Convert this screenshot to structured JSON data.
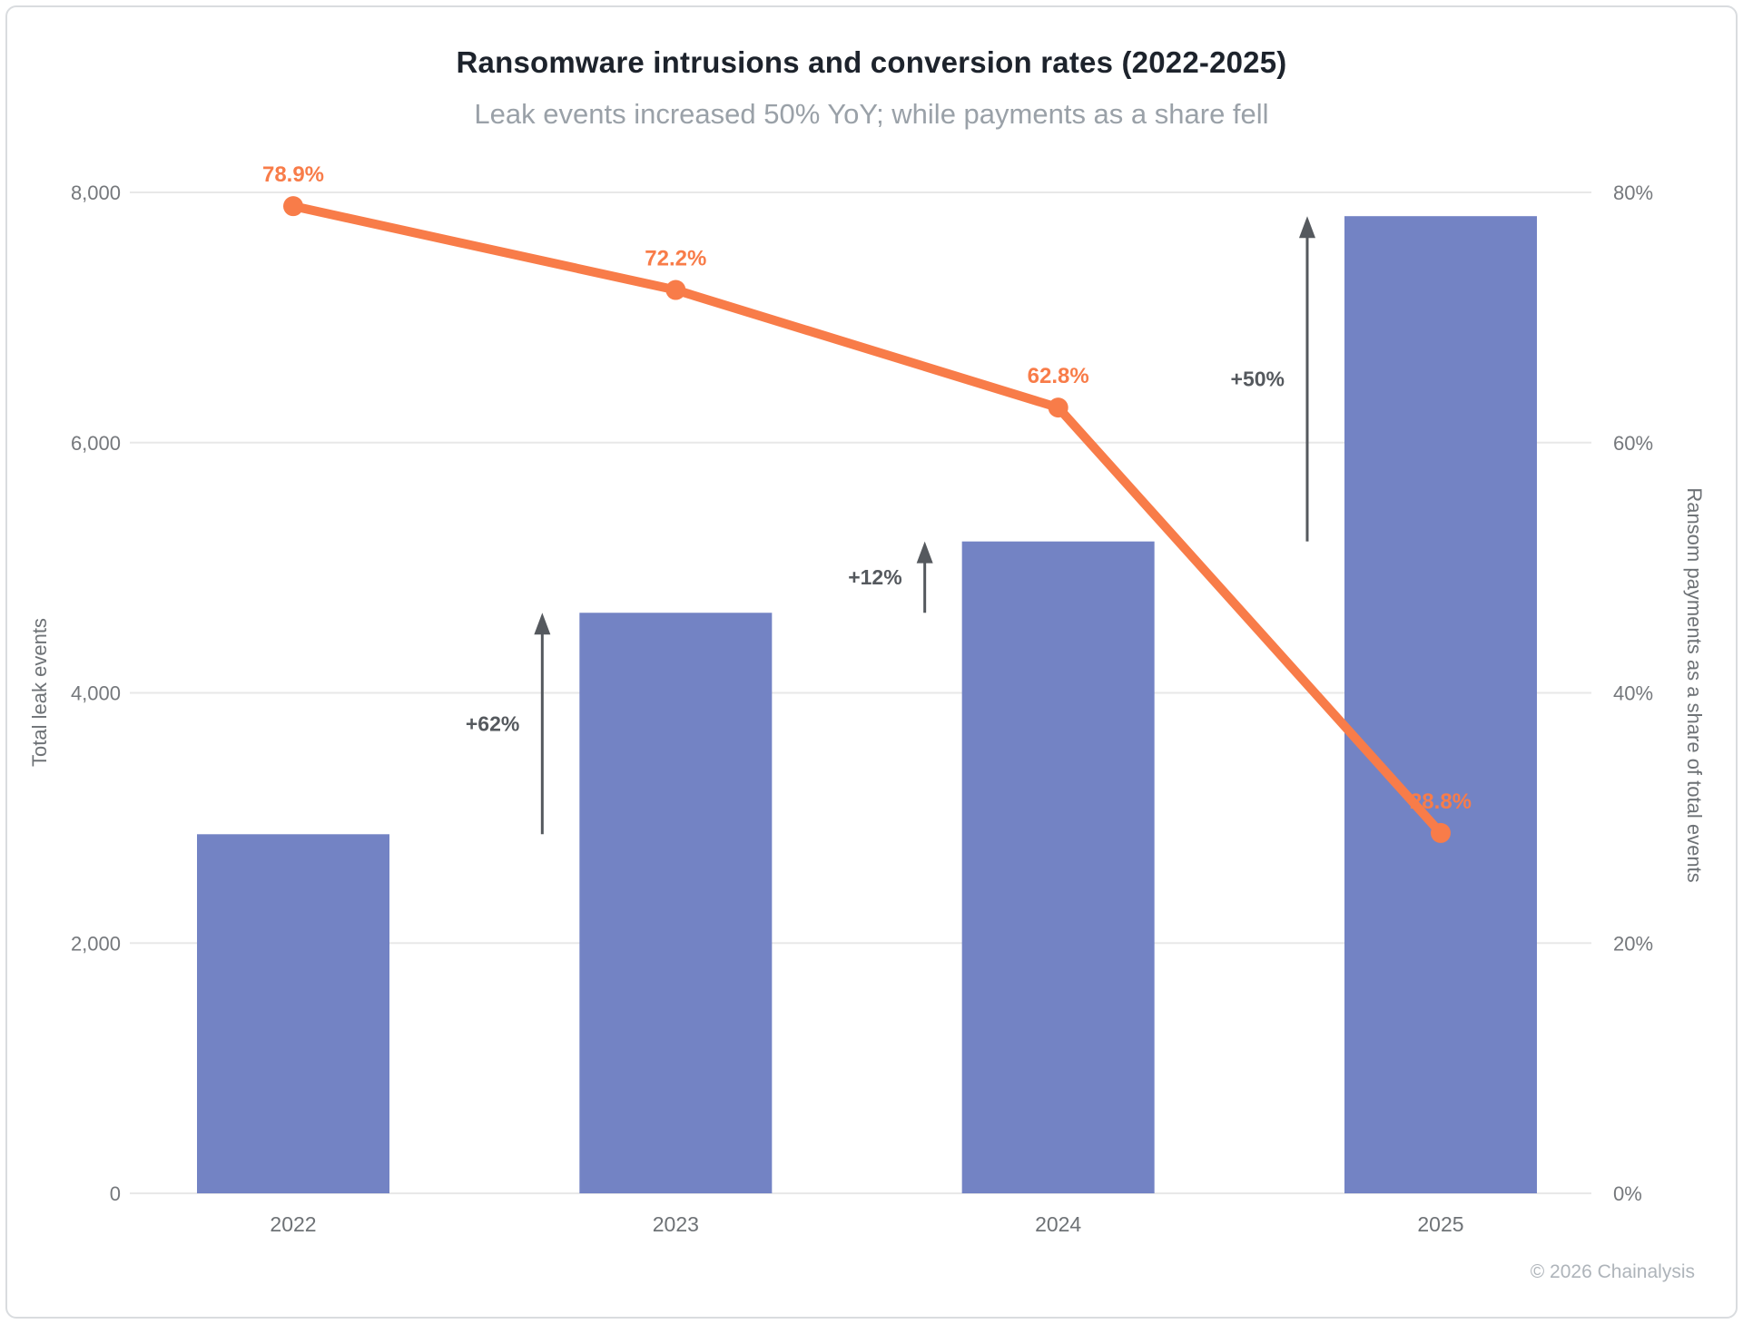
{
  "page": {
    "footer": "© 2026 Chainalysis"
  },
  "chart_data": {
    "type": "bar+line",
    "title": "Ransomware intrusions and conversion rates (2022-2025)",
    "subtitle": "Leak events increased 50% YoY; while payments as a share fell",
    "categories": [
      "2022",
      "2023",
      "2024",
      "2025"
    ],
    "series": [
      {
        "name": "Total leak events",
        "type": "bar",
        "axis": "left",
        "values": [
          2870,
          4640,
          5210,
          7810
        ]
      },
      {
        "name": "Ransom payments as a share of total events",
        "type": "line",
        "axis": "right",
        "values": [
          78.9,
          72.2,
          62.8,
          28.8
        ],
        "point_labels": [
          "78.9%",
          "72.2%",
          "62.8%",
          "28.8%"
        ]
      }
    ],
    "annotations": [
      {
        "label": "+62%",
        "from": "2022",
        "to": "2023"
      },
      {
        "label": "+12%",
        "from": "2023",
        "to": "2024"
      },
      {
        "label": "+50%",
        "from": "2024",
        "to": "2025"
      }
    ],
    "axes": {
      "left": {
        "title": "Total leak events",
        "min": 0,
        "max": 8000,
        "ticks": [
          {
            "value": 0,
            "label": "0"
          },
          {
            "value": 2000,
            "label": "2,000"
          },
          {
            "value": 4000,
            "label": "4,000"
          },
          {
            "value": 6000,
            "label": "6,000"
          },
          {
            "value": 8000,
            "label": "8,000"
          }
        ]
      },
      "right": {
        "title": "Ransom payments as a share of total events",
        "min": 0,
        "max": 80,
        "ticks": [
          {
            "value": 0,
            "label": "0%"
          },
          {
            "value": 20,
            "label": "20%"
          },
          {
            "value": 40,
            "label": "40%"
          },
          {
            "value": 60,
            "label": "60%"
          },
          {
            "value": 80,
            "label": "80%"
          }
        ]
      }
    },
    "grid": true,
    "legend": "none",
    "colors": {
      "bar": "#7383c4",
      "line": "#f87c49",
      "annotation": "#55595e",
      "grid": "#e8e8e8",
      "tick_text": "#75787c",
      "title": "#1d232c",
      "subtitle": "#9aa1a8",
      "footer": "#aeb4ba"
    }
  }
}
